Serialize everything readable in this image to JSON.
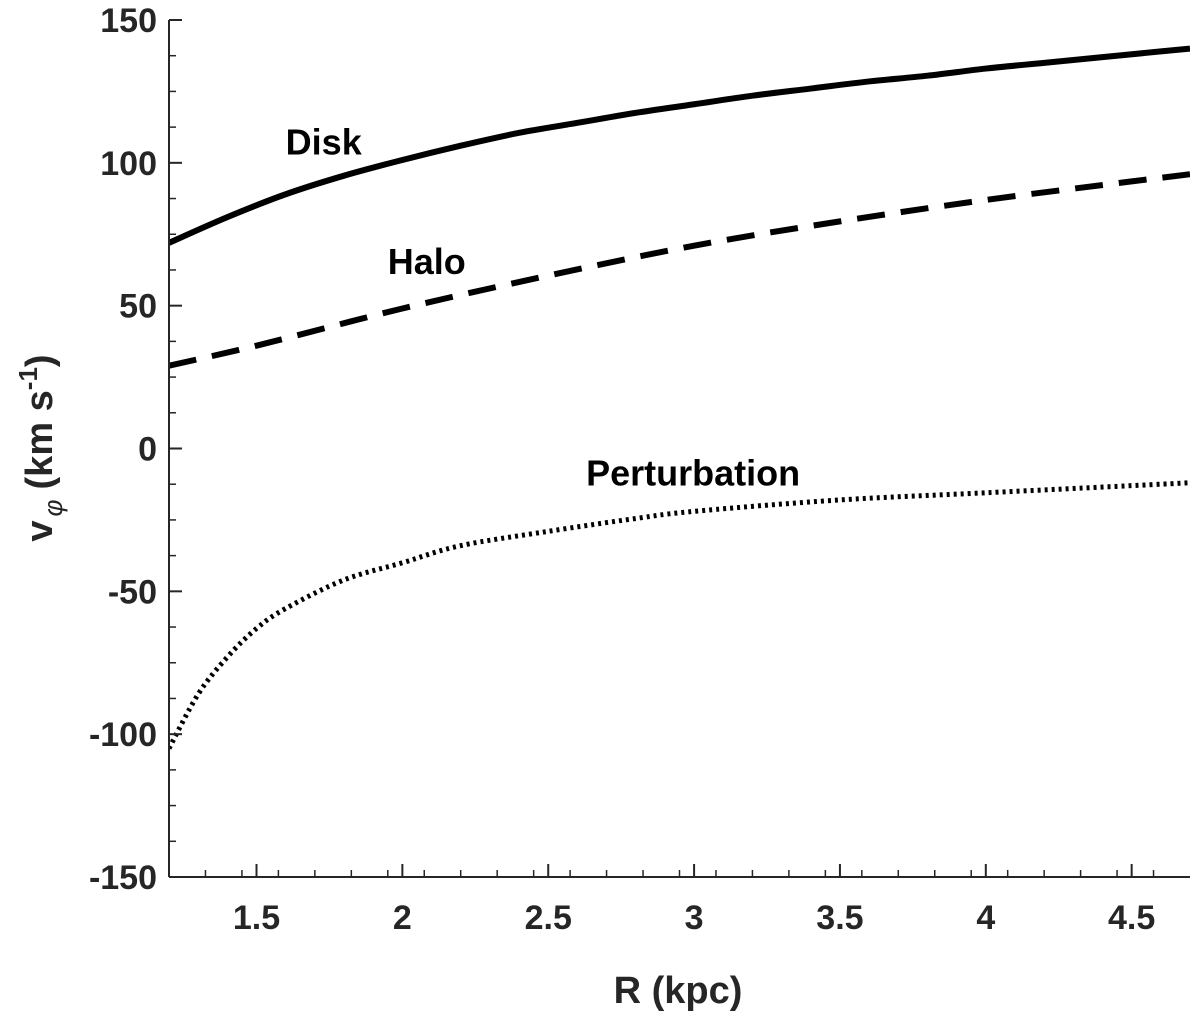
{
  "chart_data": {
    "type": "line",
    "title": "",
    "xlabel": "R (kpc)",
    "ylabel": {
      "main": "v",
      "subscript": "φ",
      "unit_open": "(km s",
      "unit_exp": "-1",
      "unit_close": ")"
    },
    "xlim": [
      1.2,
      4.7
    ],
    "ylim": [
      -150,
      150
    ],
    "xticks": [
      1.5,
      2,
      2.5,
      3,
      3.5,
      4,
      4.5
    ],
    "xtick_labels": [
      "1.5",
      "2",
      "2.5",
      "3",
      "3.5",
      "4",
      "4.5"
    ],
    "yticks": [
      150,
      100,
      50,
      0,
      -50,
      -100,
      -150
    ],
    "ytick_labels": [
      "150",
      "100",
      "50",
      "0",
      "-50",
      "-100",
      "-150"
    ],
    "x_minor_step": 0.125,
    "y_minor_step": 12.5,
    "grid": false,
    "colors": {
      "axis": "#262626",
      "line": "#000000"
    },
    "series": [
      {
        "name": "Disk",
        "style": "solid",
        "label": "Disk",
        "label_at": [
          1.6,
          103
        ],
        "x": [
          1.2,
          1.4,
          1.6,
          1.8,
          2.0,
          2.2,
          2.4,
          2.6,
          2.8,
          3.0,
          3.2,
          3.4,
          3.6,
          3.8,
          4.0,
          4.2,
          4.4,
          4.6,
          4.7
        ],
        "y": [
          72,
          81,
          89,
          95.5,
          101,
          106,
          110.5,
          114,
          117.5,
          120.5,
          123.5,
          126,
          128.5,
          130.5,
          133,
          135,
          137,
          139,
          140
        ]
      },
      {
        "name": "Halo",
        "style": "dashed",
        "label": "Halo",
        "label_at": [
          1.95,
          61
        ],
        "x": [
          1.2,
          1.5,
          2.0,
          2.5,
          3.0,
          3.5,
          4.0,
          4.5,
          4.7
        ],
        "y": [
          29,
          36,
          49,
          60.5,
          71,
          79.5,
          87,
          93.5,
          96
        ]
      },
      {
        "name": "Perturbation",
        "style": "dotted",
        "label": "Perturbation",
        "label_at": [
          2.63,
          -13
        ],
        "x": [
          1.2,
          1.3,
          1.4,
          1.5,
          1.6,
          1.8,
          2.0,
          2.2,
          2.5,
          2.8,
          3.0,
          3.5,
          4.0,
          4.5,
          4.7
        ],
        "y": [
          -105,
          -86,
          -73,
          -63,
          -56,
          -46,
          -40,
          -34,
          -29,
          -24.5,
          -22,
          -18,
          -15.5,
          -13,
          -12
        ]
      }
    ]
  }
}
